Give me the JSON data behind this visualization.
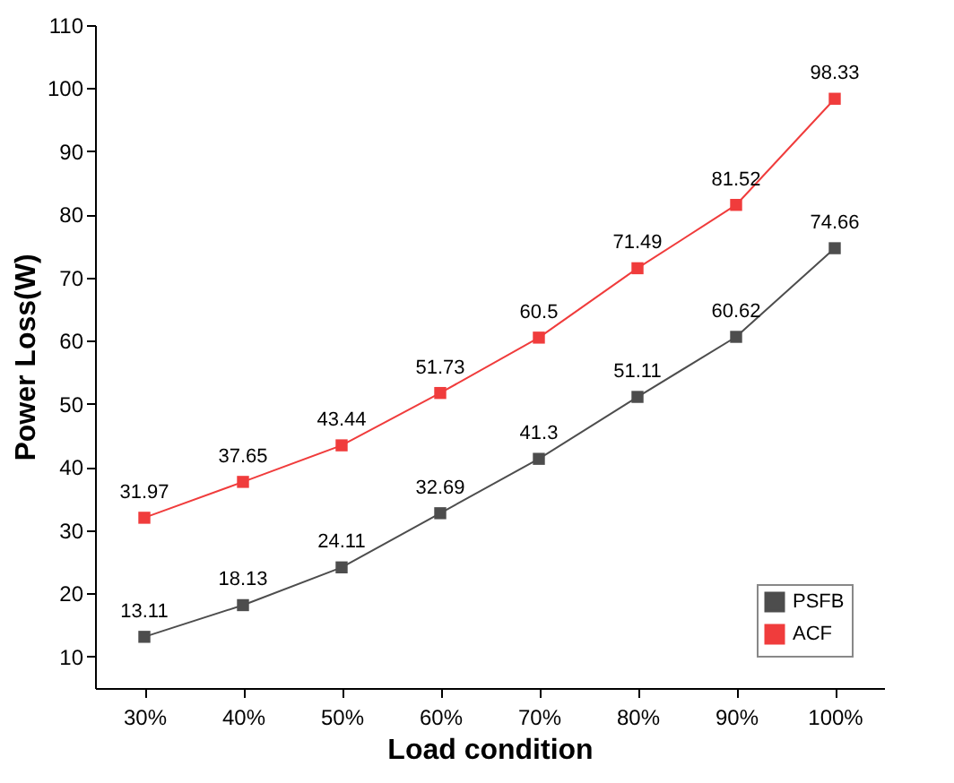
{
  "chart_data": {
    "type": "line",
    "xlabel": "Load condition",
    "ylabel": "Power Loss(W)",
    "categories": [
      "30%",
      "40%",
      "50%",
      "60%",
      "70%",
      "80%",
      "90%",
      "100%"
    ],
    "series": [
      {
        "name": "PSFB",
        "color": "#4d4d4d",
        "values": [
          13.11,
          18.13,
          24.11,
          32.69,
          41.3,
          51.11,
          60.62,
          74.66
        ]
      },
      {
        "name": "ACF",
        "color": "#f03c3c",
        "values": [
          31.97,
          37.65,
          43.44,
          51.73,
          60.5,
          71.49,
          81.52,
          98.33
        ]
      }
    ],
    "ylim": [
      5,
      110
    ],
    "yticks": [
      10,
      20,
      30,
      40,
      50,
      60,
      70,
      80,
      90,
      100,
      110
    ],
    "grid": false,
    "legend": "bottom right",
    "marker": "square",
    "line_style": "solid",
    "data_labels": true
  }
}
